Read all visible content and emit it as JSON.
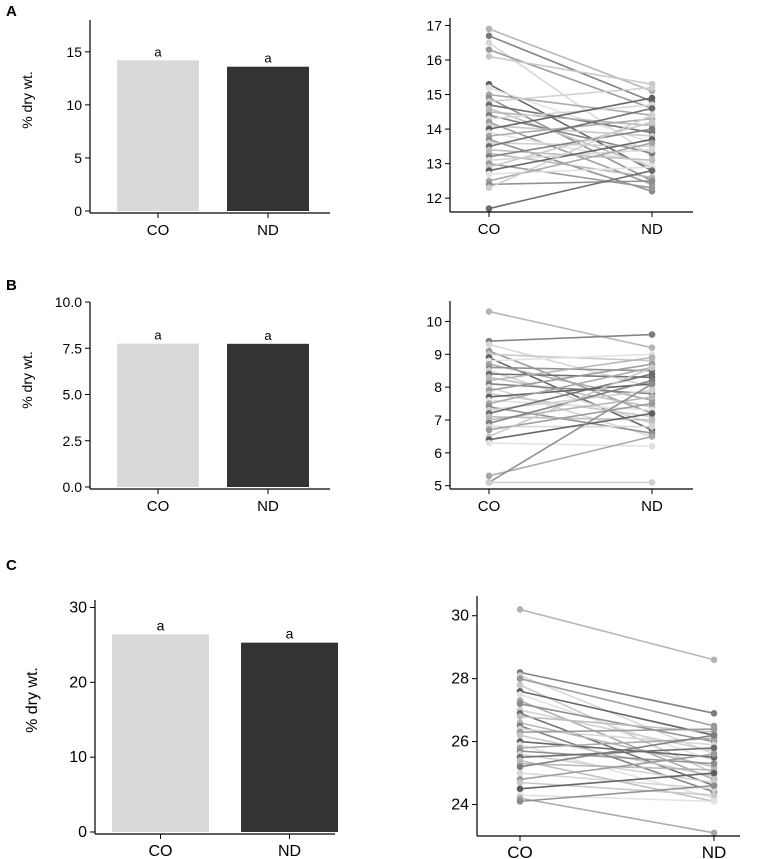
{
  "colors": {
    "bar_co": "#d9d9d9",
    "bar_nd": "#333333",
    "axis": "#000000",
    "gray_palette": [
      "#b4b4b4",
      "#7c7c7c",
      "#d6d6d6",
      "#999999",
      "#c7c7c7",
      "#5e5e5e",
      "#e2e2e2",
      "#a6a6a6",
      "#8c8c8c",
      "#cfcfcf",
      "#6a6a6a",
      "#bdbdbd"
    ]
  },
  "chart_data": [
    {
      "panel": "A",
      "type": "bar",
      "categories": [
        "CO",
        "ND"
      ],
      "values": [
        14.2,
        13.6
      ],
      "letters": [
        "a",
        "a"
      ],
      "ylabel": "% dry wt.",
      "ylim": [
        0,
        18
      ],
      "yticks": [
        0,
        5,
        10,
        15
      ]
    },
    {
      "panel": "A",
      "type": "line",
      "categories": [
        "CO",
        "ND"
      ],
      "pairs": [
        [
          16.9,
          15.1
        ],
        [
          16.7,
          14.8
        ],
        [
          16.5,
          13.2
        ],
        [
          16.3,
          14.6
        ],
        [
          16.1,
          15.3
        ],
        [
          15.3,
          12.8
        ],
        [
          15.2,
          13.6
        ],
        [
          15.0,
          14.4
        ],
        [
          14.9,
          12.5
        ],
        [
          14.8,
          15.2
        ],
        [
          14.7,
          13.9
        ],
        [
          14.6,
          12.9
        ],
        [
          14.5,
          14.1
        ],
        [
          14.4,
          13.3
        ],
        [
          14.3,
          14.7
        ],
        [
          14.2,
          12.4
        ],
        [
          14.1,
          13.8
        ],
        [
          14.0,
          14.9
        ],
        [
          13.9,
          13.0
        ],
        [
          13.8,
          14.3
        ],
        [
          13.7,
          12.2
        ],
        [
          13.6,
          13.5
        ],
        [
          13.5,
          14.6
        ],
        [
          13.4,
          13.1
        ],
        [
          13.3,
          12.6
        ],
        [
          13.2,
          14.0
        ],
        [
          13.1,
          13.4
        ],
        [
          13.0,
          12.3
        ],
        [
          12.9,
          14.2
        ],
        [
          12.8,
          13.7
        ],
        [
          12.7,
          12.9
        ],
        [
          12.5,
          13.6
        ],
        [
          12.4,
          12.5
        ],
        [
          12.3,
          14.4
        ],
        [
          11.7,
          12.8
        ]
      ],
      "ylim": [
        11.6,
        17.1
      ],
      "yticks": [
        12,
        13,
        14,
        15,
        16,
        17
      ]
    },
    {
      "panel": "B",
      "type": "bar",
      "categories": [
        "CO",
        "ND"
      ],
      "values": [
        7.75,
        7.74
      ],
      "letters": [
        "a",
        "a"
      ],
      "ylabel": "% dry wt.",
      "ylim": [
        0,
        10
      ],
      "yticks": [
        "0.0",
        "2.5",
        "5.0",
        "7.5",
        "10.0"
      ]
    },
    {
      "panel": "B",
      "type": "line",
      "categories": [
        "CO",
        "ND"
      ],
      "pairs": [
        [
          10.3,
          9.2
        ],
        [
          9.4,
          9.6
        ],
        [
          9.3,
          8.0
        ],
        [
          9.1,
          7.2
        ],
        [
          9.0,
          8.8
        ],
        [
          8.9,
          6.7
        ],
        [
          8.8,
          9.0
        ],
        [
          8.7,
          7.6
        ],
        [
          8.6,
          8.5
        ],
        [
          8.5,
          6.9
        ],
        [
          8.4,
          8.3
        ],
        [
          8.3,
          7.4
        ],
        [
          8.2,
          8.9
        ],
        [
          8.1,
          7.8
        ],
        [
          8.0,
          6.5
        ],
        [
          7.9,
          8.7
        ],
        [
          7.8,
          7.1
        ],
        [
          7.7,
          8.1
        ],
        [
          7.6,
          7.3
        ],
        [
          7.5,
          8.6
        ],
        [
          7.4,
          6.6
        ],
        [
          7.3,
          7.9
        ],
        [
          7.2,
          8.4
        ],
        [
          7.1,
          7.0
        ],
        [
          7.0,
          7.7
        ],
        [
          6.9,
          8.2
        ],
        [
          6.8,
          6.8
        ],
        [
          6.7,
          7.5
        ],
        [
          6.5,
          8.6
        ],
        [
          6.4,
          7.2
        ],
        [
          6.3,
          6.2
        ],
        [
          5.3,
          6.5
        ],
        [
          5.1,
          8.1
        ],
        [
          5.1,
          5.1
        ]
      ],
      "ylim": [
        4.9,
        10.5
      ],
      "yticks": [
        5,
        6,
        7,
        8,
        9,
        10
      ]
    },
    {
      "panel": "C",
      "type": "bar",
      "categories": [
        "CO",
        "ND"
      ],
      "values": [
        26.4,
        25.3
      ],
      "letters": [
        "a",
        "a"
      ],
      "ylabel": "% dry wt.",
      "ylim": [
        0,
        31
      ],
      "yticks": [
        0,
        10,
        20,
        30
      ]
    },
    {
      "panel": "C",
      "type": "line",
      "categories": [
        "CO",
        "ND"
      ],
      "pairs": [
        [
          30.2,
          28.6
        ],
        [
          28.2,
          26.9
        ],
        [
          28.1,
          25.6
        ],
        [
          28.0,
          26.5
        ],
        [
          27.8,
          25.0
        ],
        [
          27.6,
          26.2
        ],
        [
          27.5,
          25.4
        ],
        [
          27.3,
          24.8
        ],
        [
          27.2,
          26.0
        ],
        [
          27.0,
          25.7
        ],
        [
          26.9,
          24.6
        ],
        [
          26.8,
          26.3
        ],
        [
          26.6,
          25.2
        ],
        [
          26.5,
          24.4
        ],
        [
          26.4,
          25.9
        ],
        [
          26.3,
          26.4
        ],
        [
          26.2,
          24.9
        ],
        [
          26.0,
          25.5
        ],
        [
          25.9,
          24.2
        ],
        [
          25.8,
          26.1
        ],
        [
          25.7,
          25.3
        ],
        [
          25.6,
          24.7
        ],
        [
          25.5,
          25.8
        ],
        [
          25.4,
          24.1
        ],
        [
          25.3,
          25.1
        ],
        [
          25.2,
          26.2
        ],
        [
          25.0,
          24.5
        ],
        [
          24.8,
          25.6
        ],
        [
          24.7,
          24.3
        ],
        [
          24.5,
          25.0
        ],
        [
          24.3,
          24.1
        ],
        [
          24.2,
          23.1
        ],
        [
          24.1,
          24.6
        ]
      ],
      "ylim": [
        23.0,
        30.5
      ],
      "yticks": [
        24,
        26,
        28,
        30
      ]
    }
  ],
  "panels": [
    "A",
    "B",
    "C"
  ]
}
